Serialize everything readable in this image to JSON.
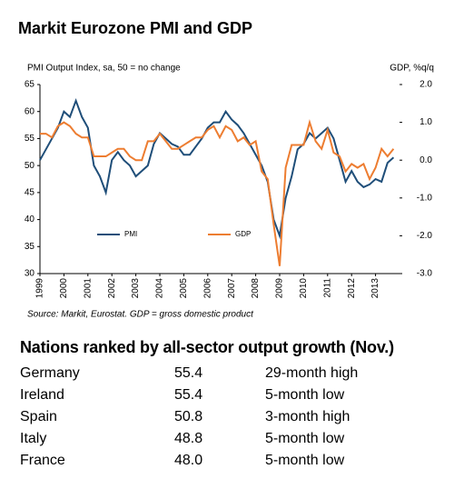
{
  "chart_data": {
    "type": "line",
    "title": "Markit Eurozone PMI and GDP",
    "y_label": "PMI Output Index, sa, 50 = no change",
    "y2_label": "GDP, %q/q",
    "source": "Source: Markit, Eurostat. GDP = gross domestic product",
    "x": [
      1999,
      1999.25,
      1999.5,
      1999.75,
      2000,
      2000.25,
      2000.5,
      2000.75,
      2001,
      2001.25,
      2001.5,
      2001.75,
      2002,
      2002.25,
      2002.5,
      2002.75,
      2003,
      2003.25,
      2003.5,
      2003.75,
      2004,
      2004.25,
      2004.5,
      2004.75,
      2005,
      2005.25,
      2005.5,
      2005.75,
      2006,
      2006.25,
      2006.5,
      2006.75,
      2007,
      2007.25,
      2007.5,
      2007.75,
      2008,
      2008.25,
      2008.5,
      2008.75,
      2009,
      2009.25,
      2009.5,
      2009.75,
      2010,
      2010.25,
      2010.5,
      2010.75,
      2011,
      2011.25,
      2011.5,
      2011.75,
      2012,
      2012.25,
      2012.5,
      2012.75,
      2013,
      2013.25,
      2013.5,
      2013.75
    ],
    "series": [
      {
        "name": "PMI",
        "color": "#1f4e79",
        "axis": "y",
        "values": [
          51,
          53,
          55,
          57,
          60,
          59,
          62,
          59,
          57,
          50,
          48,
          45,
          51,
          52.5,
          51,
          50,
          48,
          49,
          50,
          54,
          56,
          55,
          54,
          53.5,
          52,
          52,
          53.5,
          55,
          57,
          58,
          58,
          60,
          58.5,
          57.5,
          56,
          54,
          52,
          50,
          47,
          40,
          37,
          44,
          48,
          53,
          54,
          56,
          55,
          56,
          57,
          55,
          51,
          47,
          49,
          47,
          46,
          46.5,
          47.5,
          47,
          50.5,
          51.5
        ]
      },
      {
        "name": "GDP",
        "color": "#ed7d31",
        "axis": "y2",
        "values": [
          0.7,
          0.7,
          0.6,
          0.9,
          1.0,
          0.9,
          0.7,
          0.6,
          0.6,
          0.1,
          0.1,
          0.1,
          0.2,
          0.3,
          0.3,
          0.1,
          0.0,
          0.0,
          0.5,
          0.5,
          0.7,
          0.5,
          0.3,
          0.3,
          0.4,
          0.5,
          0.6,
          0.6,
          0.8,
          0.9,
          0.6,
          0.9,
          0.8,
          0.5,
          0.6,
          0.4,
          0.5,
          -0.3,
          -0.5,
          -1.7,
          -2.8,
          -0.2,
          0.4,
          0.4,
          0.4,
          1.0,
          0.5,
          0.3,
          0.8,
          0.2,
          0.1,
          -0.3,
          -0.1,
          -0.2,
          -0.1,
          -0.5,
          -0.2,
          0.3,
          0.1,
          0.3
        ]
      }
    ],
    "xlim": [
      1999,
      2014
    ],
    "xticks": [
      1999,
      2000,
      2001,
      2002,
      2003,
      2004,
      2005,
      2006,
      2007,
      2008,
      2009,
      2010,
      2011,
      2012,
      2013
    ],
    "ylim": [
      30,
      65
    ],
    "yticks": [
      30,
      35,
      40,
      45,
      50,
      55,
      60,
      65
    ],
    "y2lim": [
      -3,
      2
    ],
    "y2ticks": [
      {
        "value": -3,
        "label": "-3.0"
      },
      {
        "value": -2,
        "label": "-2.0"
      },
      {
        "value": -1,
        "label": "-1.0"
      },
      {
        "value": 0,
        "label": "0.0"
      },
      {
        "value": 1,
        "label": "1.0"
      },
      {
        "value": 2,
        "label": "2.0"
      }
    ],
    "grid": false,
    "legend": "lower center"
  },
  "table": {
    "title": "Nations ranked by all-sector output growth (Nov.)",
    "rows": [
      [
        "Germany",
        "55.4",
        "29-month high"
      ],
      [
        "Ireland",
        "55.4",
        "5-month low"
      ],
      [
        "Spain",
        "50.8",
        "3-month high"
      ],
      [
        "Italy",
        "48.8",
        "5-month low"
      ],
      [
        "France",
        "48.0",
        "5-month low"
      ]
    ]
  }
}
